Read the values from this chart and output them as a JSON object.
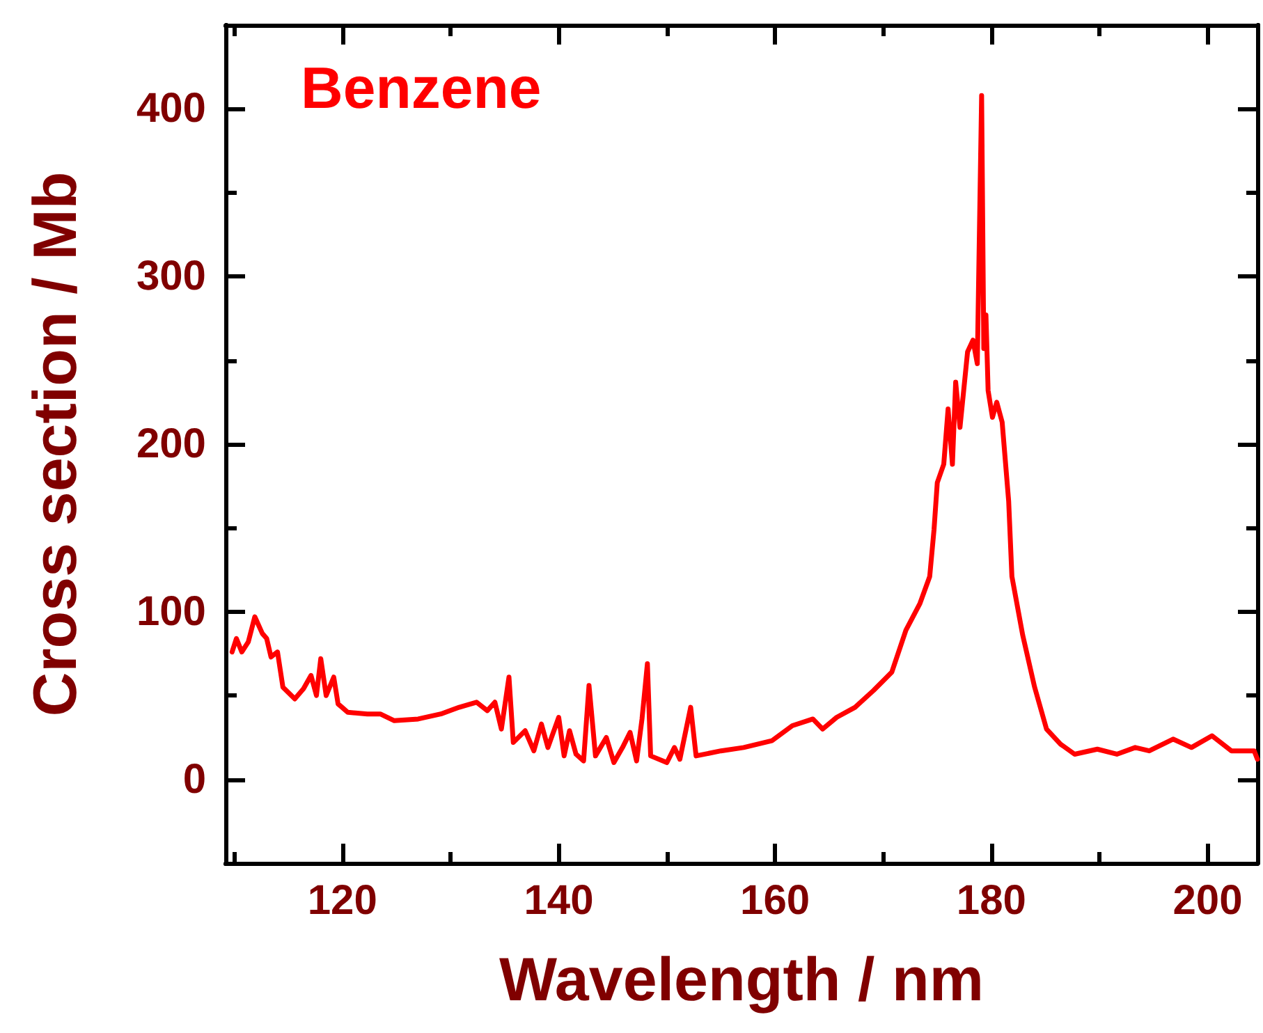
{
  "chart_data": {
    "type": "line",
    "xlabel": "Wavelength / nm",
    "ylabel": "Cross section / Mb",
    "xlim": [
      109.2,
      204.6
    ],
    "ylim": [
      -50,
      450
    ],
    "xticks": [
      {
        "value": 110,
        "label": null
      },
      120,
      {
        "value": 130,
        "label": null
      },
      140,
      {
        "value": 150,
        "label": null
      },
      160,
      {
        "value": 170,
        "label": null
      },
      180,
      {
        "value": 190,
        "label": null
      },
      200
    ],
    "yticks": [
      0,
      {
        "value": 50,
        "label": null
      },
      100,
      {
        "value": 150,
        "label": null
      },
      200,
      {
        "value": 250,
        "label": null
      },
      300,
      {
        "value": 350,
        "label": null
      },
      400
    ],
    "grid": false,
    "legend": false,
    "marker": "none",
    "line_style": "solid",
    "series": [
      {
        "name": "Benzene",
        "color": "#ff0000",
        "x": [
          109.8,
          110.2,
          110.7,
          111.3,
          111.9,
          112.6,
          113.0,
          113.4,
          114.0,
          114.5,
          115.6,
          116.4,
          117.1,
          117.6,
          118.0,
          118.5,
          119.2,
          119.6,
          120.5,
          122.3,
          123.5,
          124.8,
          127.0,
          129.1,
          130.8,
          132.4,
          133.4,
          134.1,
          134.7,
          135.4,
          135.8,
          136.9,
          137.7,
          138.4,
          139.0,
          140.0,
          140.5,
          141.0,
          141.6,
          142.3,
          142.8,
          143.4,
          144.4,
          145.1,
          145.9,
          146.6,
          147.2,
          147.7,
          148.2,
          148.5,
          150.0,
          150.7,
          151.2,
          152.2,
          152.7,
          155.0,
          157.1,
          159.7,
          161.6,
          163.5,
          164.4,
          165.7,
          167.4,
          169.1,
          170.8,
          172.1,
          173.4,
          174.3,
          174.7,
          175.0,
          175.6,
          176.0,
          176.4,
          176.7,
          177.1,
          177.8,
          178.3,
          178.7,
          179.1,
          179.3,
          179.5,
          179.7,
          180.1,
          180.5,
          181.0,
          181.6,
          181.9,
          182.9,
          184.0,
          185.1,
          186.4,
          187.7,
          189.8,
          191.6,
          193.3,
          194.6,
          196.8,
          198.5,
          200.4,
          202.2,
          204.3,
          204.6
        ],
        "values": [
          76,
          84,
          76,
          82,
          97,
          87,
          84,
          73,
          76,
          55,
          48,
          54,
          62,
          50,
          72,
          50,
          61,
          45,
          40,
          39,
          39,
          35,
          36,
          39,
          43,
          46,
          41,
          46,
          30,
          61,
          22,
          29,
          17,
          33,
          19,
          37,
          14,
          29,
          15,
          11,
          56,
          14,
          25,
          10,
          19,
          28,
          11,
          36,
          69,
          14,
          10,
          19,
          12,
          43,
          14,
          17,
          19,
          23,
          32,
          36,
          30,
          37,
          43,
          53,
          64,
          89,
          105,
          121,
          149,
          177,
          188,
          221,
          188,
          237,
          210,
          255,
          262,
          248,
          408,
          257,
          277,
          232,
          216,
          225,
          213,
          166,
          121,
          86,
          55,
          30,
          21,
          15,
          18,
          15,
          19,
          17,
          24,
          19,
          26,
          17,
          17,
          12
        ]
      }
    ]
  }
}
